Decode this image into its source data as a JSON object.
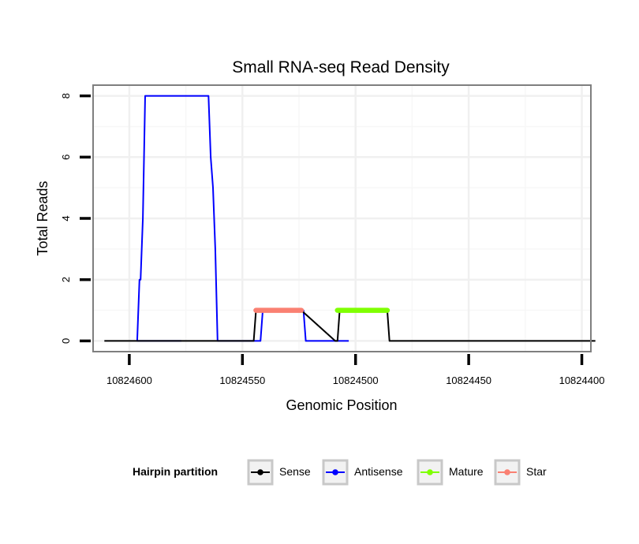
{
  "chart_data": {
    "type": "line",
    "title": "Small RNA-seq Read Density",
    "xlabel": "Genomic Position",
    "ylabel": "Total Reads",
    "x_reversed": true,
    "xlim": [
      10824616,
      10824396
    ],
    "ylim": [
      -0.35,
      8.35
    ],
    "x_ticks": [
      10824600,
      10824550,
      10824500,
      10824450,
      10824400
    ],
    "x_tick_labels": [
      "10824600",
      "10824550",
      "10824500",
      "10824450",
      "10824400"
    ],
    "y_ticks": [
      0,
      2,
      4,
      6,
      8
    ],
    "y_tick_labels": [
      "0",
      "2",
      "4",
      "6",
      "8"
    ],
    "grid": true,
    "legend": {
      "title": "Hairpin partition",
      "position": "bottom",
      "entries": [
        {
          "name": "Sense",
          "color": "#000000"
        },
        {
          "name": "Antisense",
          "color": "#0000ff"
        },
        {
          "name": "Mature",
          "color": "#7fff00"
        },
        {
          "name": "Star",
          "color": "#fa8072"
        }
      ]
    },
    "series": [
      {
        "name": "Antisense",
        "color": "#0000ff",
        "x": [
          10824577,
          10824596.5,
          10824595.5,
          10824595,
          10824594,
          10824593,
          10824592,
          10824565,
          10824564,
          10824563,
          10824562,
          10824561,
          10824542,
          10824541,
          10824540,
          10824525,
          10824524,
          10824523,
          10824522,
          10824520,
          10824508,
          10824503
        ],
        "y": [
          0,
          0,
          2,
          2,
          4,
          8,
          8,
          8,
          6,
          5,
          3,
          0,
          0,
          1,
          1,
          1,
          1,
          1,
          0,
          0,
          0,
          0
        ]
      },
      {
        "name": "Sense",
        "color": "#000000",
        "x": [
          10824611,
          10824545,
          10824544,
          10824525,
          10824524,
          10824509,
          10824508,
          10824507,
          10824486,
          10824485,
          10824394
        ],
        "y": [
          0,
          0,
          1,
          1,
          1,
          0,
          0,
          1,
          1,
          0,
          0
        ]
      },
      {
        "name": "Star",
        "color": "#fa8072",
        "x": [
          10824544,
          10824524
        ],
        "y": [
          1,
          1
        ]
      },
      {
        "name": "Mature",
        "color": "#7fff00",
        "x": [
          10824508,
          10824486
        ],
        "y": [
          1,
          1
        ]
      }
    ]
  }
}
